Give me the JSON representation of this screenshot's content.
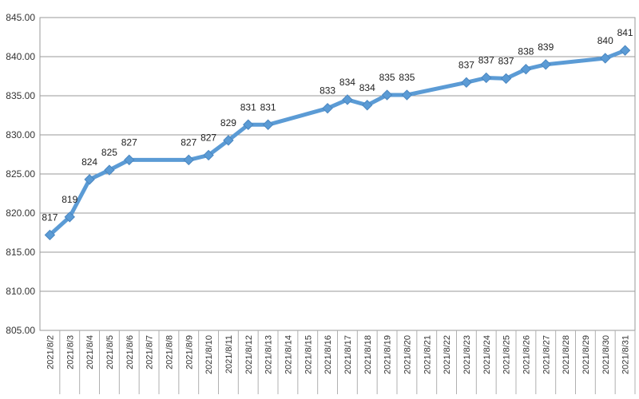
{
  "chart_data": {
    "type": "line",
    "title": "",
    "xlabel": "",
    "ylabel": "",
    "ylim": [
      805,
      845
    ],
    "yticks": [
      805,
      810,
      815,
      820,
      825,
      830,
      835,
      840,
      845
    ],
    "ytick_labels": [
      "805.00",
      "810.00",
      "815.00",
      "820.00",
      "825.00",
      "830.00",
      "835.00",
      "840.00",
      "845.00"
    ],
    "grid": true,
    "legend": "none",
    "line_color": "#5B9BD5",
    "categories": [
      "2021/8/2",
      "2021/8/3",
      "2021/8/4",
      "2021/8/5",
      "2021/8/6",
      "2021/8/7",
      "2021/8/8",
      "2021/8/9",
      "2021/8/10",
      "2021/8/11",
      "2021/8/12",
      "2021/8/13",
      "2021/8/14",
      "2021/8/15",
      "2021/8/16",
      "2021/8/17",
      "2021/8/18",
      "2021/8/19",
      "2021/8/20",
      "2021/8/21",
      "2021/8/22",
      "2021/8/23",
      "2021/8/24",
      "2021/8/25",
      "2021/8/26",
      "2021/8/27",
      "2021/8/28",
      "2021/8/29",
      "2021/8/30",
      "2021/8/31"
    ],
    "series": [
      {
        "points": [
          {
            "x": "2021/8/2",
            "y": 817.2,
            "label": "817"
          },
          {
            "x": "2021/8/3",
            "y": 819.5,
            "label": "819"
          },
          {
            "x": "2021/8/4",
            "y": 824.3,
            "label": "824"
          },
          {
            "x": "2021/8/5",
            "y": 825.5,
            "label": "825"
          },
          {
            "x": "2021/8/6",
            "y": 826.8,
            "label": "827"
          },
          {
            "x": "2021/8/9",
            "y": 826.8,
            "label": "827"
          },
          {
            "x": "2021/8/10",
            "y": 827.4,
            "label": "827"
          },
          {
            "x": "2021/8/11",
            "y": 829.3,
            "label": "829"
          },
          {
            "x": "2021/8/12",
            "y": 831.3,
            "label": "831"
          },
          {
            "x": "2021/8/13",
            "y": 831.3,
            "label": "831"
          },
          {
            "x": "2021/8/16",
            "y": 833.4,
            "label": "833"
          },
          {
            "x": "2021/8/17",
            "y": 834.5,
            "label": "834"
          },
          {
            "x": "2021/8/18",
            "y": 833.8,
            "label": "834"
          },
          {
            "x": "2021/8/19",
            "y": 835.1,
            "label": "835"
          },
          {
            "x": "2021/8/20",
            "y": 835.1,
            "label": "835"
          },
          {
            "x": "2021/8/23",
            "y": 836.7,
            "label": "837"
          },
          {
            "x": "2021/8/24",
            "y": 837.3,
            "label": "837"
          },
          {
            "x": "2021/8/25",
            "y": 837.2,
            "label": "837"
          },
          {
            "x": "2021/8/26",
            "y": 838.4,
            "label": "838"
          },
          {
            "x": "2021/8/27",
            "y": 839.0,
            "label": "839"
          },
          {
            "x": "2021/8/30",
            "y": 839.8,
            "label": "840"
          },
          {
            "x": "2021/8/31",
            "y": 840.8,
            "label": "841"
          }
        ]
      }
    ]
  }
}
